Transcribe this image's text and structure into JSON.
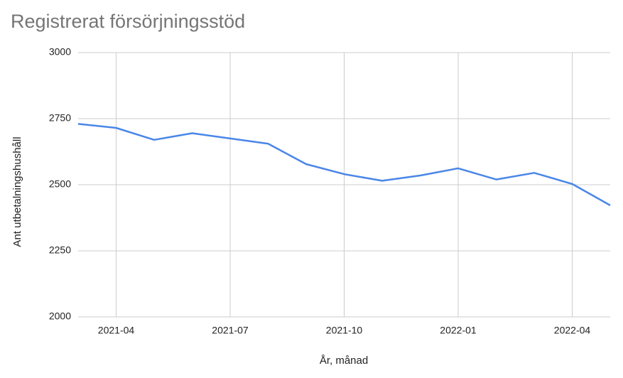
{
  "chart_data": {
    "type": "line",
    "title": "Registrerat försörjningsstöd",
    "x_label": "År, månad",
    "y_label": "Ant utbetalningshushåll",
    "x": [
      "2021-03",
      "2021-04",
      "2021-05",
      "2021-06",
      "2021-07",
      "2021-08",
      "2021-09",
      "2021-10",
      "2021-11",
      "2021-12",
      "2022-01",
      "2022-02",
      "2022-03",
      "2022-04",
      "2022-05"
    ],
    "series": [
      {
        "name": "Ant utbetalningshushåll",
        "color": "#4a86e8",
        "values": [
          2730,
          2715,
          2670,
          2695,
          2675,
          2655,
          2578,
          2540,
          2515,
          2535,
          2562,
          2520,
          2545,
          2503,
          2422
        ]
      }
    ],
    "xlim": [
      "2021-03",
      "2022-05"
    ],
    "xticks": [
      "2021-04",
      "2021-07",
      "2021-10",
      "2022-01",
      "2022-04"
    ],
    "ylim": [
      2000,
      3000
    ],
    "yticks": [
      2000,
      2250,
      2500,
      2750,
      3000
    ],
    "grid": true
  }
}
